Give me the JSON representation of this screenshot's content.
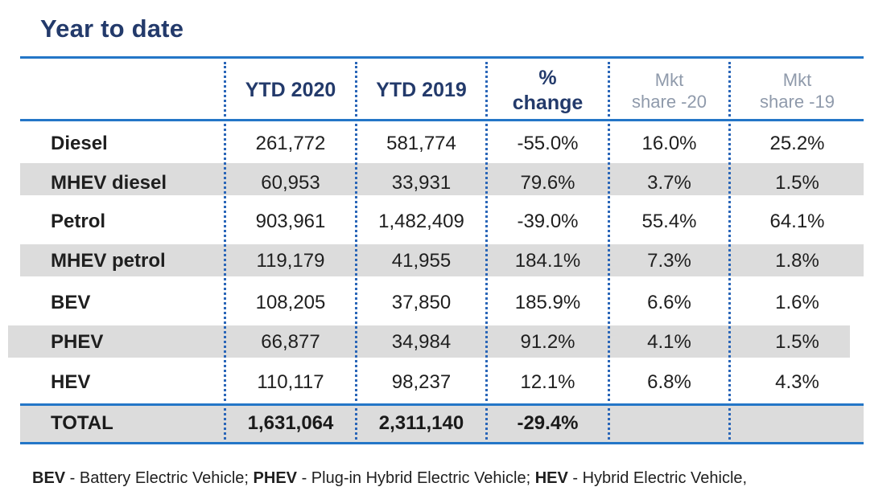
{
  "title": "Year to date",
  "headers": [
    {
      "name": "header-ytd-2020",
      "label": "YTD 2020"
    },
    {
      "name": "header-ytd-2019",
      "label": "YTD 2019"
    },
    {
      "name": "header-percent-change",
      "label": "%\nchange"
    },
    {
      "name": "header-mkt-share-2020",
      "label": "Mkt\nshare -20"
    },
    {
      "name": "header-mkt-share-2019",
      "label": "Mkt\nshare -19"
    }
  ],
  "footer": {
    "bev_abbr": "BEV",
    "bev_text": " - Battery Electric Vehicle; ",
    "phev_abbr": "PHEV",
    "phev_text": " - Plug-in Hybrid Electric Vehicle; ",
    "hev_abbr": "HEV",
    "hev_text": " - Hybrid Electric Vehicle,"
  },
  "colors": {
    "title": "#233a6b",
    "rule": "#2476c7",
    "dotted_divider": "#2a66b8",
    "shaded_row": "#dcdcdc",
    "muted_header": "#8f9aab"
  },
  "chart_data": {
    "type": "table",
    "title": "Year to date",
    "columns": [
      "",
      "YTD 2020",
      "YTD 2019",
      "% change",
      "Mkt share -20",
      "Mkt share -19"
    ],
    "rows": [
      {
        "name": "Diesel",
        "ytd_2020": "261,772",
        "ytd_2019": "581,774",
        "change": "-55.0%",
        "share_2020": "16.0%",
        "share_2019": "25.2%"
      },
      {
        "name": "MHEV diesel",
        "ytd_2020": "60,953",
        "ytd_2019": "33,931",
        "change": "79.6%",
        "share_2020": "3.7%",
        "share_2019": "1.5%"
      },
      {
        "name": "Petrol",
        "ytd_2020": "903,961",
        "ytd_2019": "1,482,409",
        "change": "-39.0%",
        "share_2020": "55.4%",
        "share_2019": "64.1%"
      },
      {
        "name": "MHEV petrol",
        "ytd_2020": "119,179",
        "ytd_2019": "41,955",
        "change": "184.1%",
        "share_2020": "7.3%",
        "share_2019": "1.8%"
      },
      {
        "name": "BEV",
        "ytd_2020": "108,205",
        "ytd_2019": "37,850",
        "change": "185.9%",
        "share_2020": "6.6%",
        "share_2019": "1.6%"
      },
      {
        "name": "PHEV",
        "ytd_2020": "66,877",
        "ytd_2019": "34,984",
        "change": "91.2%",
        "share_2020": "4.1%",
        "share_2019": "1.5%"
      },
      {
        "name": "HEV",
        "ytd_2020": "110,117",
        "ytd_2019": "98,237",
        "change": "12.1%",
        "share_2020": "6.8%",
        "share_2019": "4.3%"
      }
    ],
    "total": {
      "name": "TOTAL",
      "ytd_2020": "1,631,064",
      "ytd_2019": "2,311,140",
      "change": "-29.4%",
      "share_2020": "",
      "share_2019": ""
    }
  }
}
